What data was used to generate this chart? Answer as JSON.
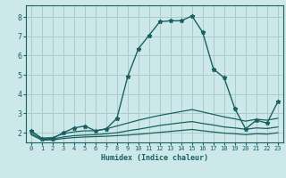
{
  "xlabel": "Humidex (Indice chaleur)",
  "bg_color": "#cce8e8",
  "grid_color": "#aacccc",
  "line_color": "#1a6060",
  "xlim": [
    -0.5,
    23.5
  ],
  "ylim": [
    1.5,
    8.6
  ],
  "xticks": [
    0,
    1,
    2,
    3,
    4,
    5,
    6,
    7,
    8,
    9,
    10,
    11,
    12,
    13,
    14,
    15,
    16,
    17,
    18,
    19,
    20,
    21,
    22,
    23
  ],
  "yticks": [
    2,
    3,
    4,
    5,
    6,
    7,
    8
  ],
  "lines": [
    {
      "x": [
        0,
        1,
        2,
        3,
        4,
        5,
        6,
        7,
        8,
        9,
        10,
        11,
        12,
        13,
        14,
        15,
        16,
        17,
        18,
        19,
        20,
        21,
        22,
        23
      ],
      "y": [
        2.1,
        1.7,
        1.7,
        2.0,
        2.25,
        2.35,
        2.1,
        2.2,
        2.75,
        4.9,
        6.35,
        7.05,
        7.75,
        7.8,
        7.8,
        8.05,
        7.2,
        5.3,
        4.85,
        3.25,
        2.2,
        2.65,
        2.5,
        3.6
      ],
      "style": "-",
      "marker": "*",
      "markersize": 3.5,
      "linewidth": 1.0
    },
    {
      "x": [
        0,
        1,
        2,
        3,
        4,
        5,
        6,
        7,
        8,
        9,
        10,
        11,
        12,
        13,
        14,
        15,
        16,
        17,
        18,
        19,
        20,
        21,
        22,
        23
      ],
      "y": [
        2.05,
        1.72,
        1.75,
        1.95,
        2.05,
        2.1,
        2.1,
        2.2,
        2.35,
        2.5,
        2.65,
        2.78,
        2.9,
        3.0,
        3.1,
        3.2,
        3.08,
        2.95,
        2.82,
        2.72,
        2.6,
        2.7,
        2.65,
        2.75
      ],
      "style": "-",
      "marker": null,
      "markersize": 0,
      "linewidth": 0.9
    },
    {
      "x": [
        0,
        1,
        2,
        3,
        4,
        5,
        6,
        7,
        8,
        9,
        10,
        11,
        12,
        13,
        14,
        15,
        16,
        17,
        18,
        19,
        20,
        21,
        22,
        23
      ],
      "y": [
        1.95,
        1.65,
        1.68,
        1.78,
        1.85,
        1.88,
        1.9,
        1.95,
        2.0,
        2.1,
        2.18,
        2.28,
        2.38,
        2.45,
        2.52,
        2.58,
        2.48,
        2.4,
        2.3,
        2.25,
        2.18,
        2.25,
        2.22,
        2.3
      ],
      "style": "-",
      "marker": null,
      "markersize": 0,
      "linewidth": 0.9
    },
    {
      "x": [
        0,
        1,
        2,
        3,
        4,
        5,
        6,
        7,
        8,
        9,
        10,
        11,
        12,
        13,
        14,
        15,
        16,
        17,
        18,
        19,
        20,
        21,
        22,
        23
      ],
      "y": [
        1.9,
        1.62,
        1.63,
        1.7,
        1.75,
        1.78,
        1.8,
        1.82,
        1.85,
        1.88,
        1.92,
        1.97,
        2.02,
        2.07,
        2.12,
        2.17,
        2.1,
        2.04,
        1.98,
        1.95,
        1.9,
        1.95,
        1.93,
        2.0
      ],
      "style": "-",
      "marker": null,
      "markersize": 0,
      "linewidth": 0.9
    }
  ]
}
